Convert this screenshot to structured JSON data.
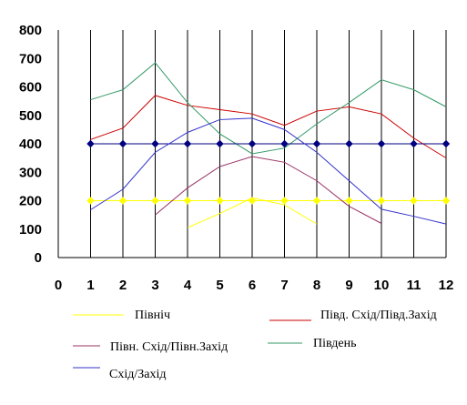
{
  "chart_data": {
    "type": "line",
    "x": [
      1,
      2,
      3,
      4,
      5,
      6,
      7,
      8,
      9,
      10,
      11,
      12
    ],
    "xlim": [
      0,
      12
    ],
    "ylim": [
      0,
      800
    ],
    "x_ticks": [
      0,
      1,
      2,
      3,
      4,
      5,
      6,
      7,
      8,
      9,
      10,
      11,
      12
    ],
    "y_ticks": [
      0,
      100,
      200,
      300,
      400,
      500,
      600,
      700,
      800
    ],
    "grid": "vertical lines only",
    "legend_position": "bottom",
    "series": [
      {
        "name": "Північ",
        "color": "#ffff00",
        "marker": "diamond",
        "values": [
          200,
          200,
          200,
          200,
          200,
          200,
          200,
          200,
          200,
          200,
          200,
          200
        ]
      },
      {
        "name": "Північ",
        "color": "#ffff00",
        "marker": "none",
        "values": [
          null,
          null,
          null,
          105,
          155,
          210,
          185,
          118,
          null,
          null,
          null,
          null
        ]
      },
      {
        "name": "Півд. Схід/Півд.Захід",
        "color": "#cc0000",
        "marker": "none",
        "values": [
          415,
          455,
          570,
          535,
          520,
          505,
          465,
          515,
          530,
          505,
          420,
          350
        ]
      },
      {
        "name": "Півн. Схід/Півн.Захід",
        "color": "#993366",
        "marker": "none",
        "values": [
          null,
          null,
          150,
          245,
          320,
          355,
          335,
          270,
          180,
          120,
          null,
          null
        ]
      },
      {
        "name": "Південь",
        "color": "#339966",
        "marker": "none",
        "values": [
          555,
          590,
          685,
          545,
          435,
          365,
          385,
          470,
          545,
          625,
          590,
          530
        ]
      },
      {
        "name": "Схід/Захід",
        "color": "#000080",
        "marker": "diamond",
        "values": [
          400,
          400,
          400,
          400,
          400,
          400,
          400,
          400,
          400,
          400,
          400,
          400
        ]
      },
      {
        "name": "Схід/Захід",
        "color": "#3333cc",
        "marker": "none",
        "values": [
          168,
          240,
          370,
          440,
          485,
          490,
          450,
          370,
          270,
          170,
          145,
          118
        ]
      }
    ],
    "legend": [
      {
        "label": "Північ",
        "color": "#ffff00"
      },
      {
        "label": "Півд. Схід/Півд.Захід",
        "color": "#cc0000"
      },
      {
        "label": "Півн. Схід/Півн.Захід",
        "color": "#993366"
      },
      {
        "label": "Південь",
        "color": "#339966"
      },
      {
        "label": "Схід/Захід",
        "color": "#3333cc"
      }
    ]
  }
}
